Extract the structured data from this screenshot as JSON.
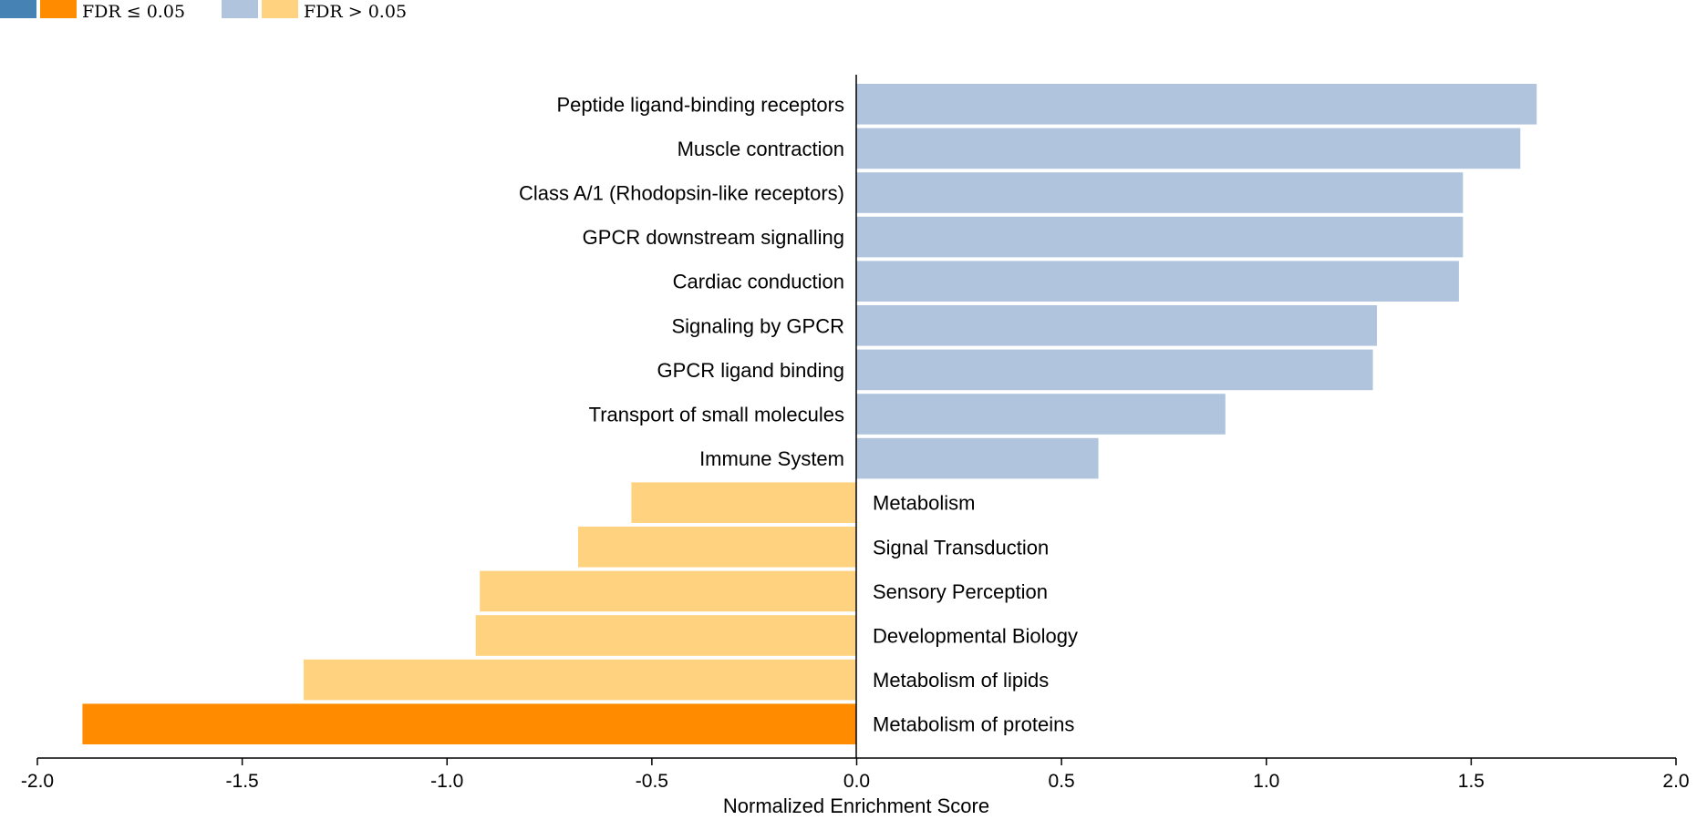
{
  "legend": {
    "items": [
      {
        "label": "FDR ≤ 0.05",
        "colors": [
          "#4682b4",
          "#ff8c00"
        ]
      },
      {
        "label": "FDR > 0.05",
        "colors": [
          "#b0c4de",
          "#ffd27f"
        ]
      }
    ]
  },
  "chart_data": {
    "type": "bar",
    "orientation": "horizontal",
    "title": "",
    "xlabel": "Normalized Enrichment Score",
    "ylabel": "",
    "xlim": [
      -2.0,
      2.0
    ],
    "xticks": [
      "-2.0",
      "-1.5",
      "-1.0",
      "-0.5",
      "0.0",
      "0.5",
      "1.0",
      "1.5",
      "2.0"
    ],
    "xtick_values": [
      -2.0,
      -1.5,
      -1.0,
      -0.5,
      0.0,
      0.5,
      1.0,
      1.5,
      2.0
    ],
    "grid": false,
    "legend_position": "top-left",
    "colors": {
      "positive_significant": "#4682b4",
      "negative_significant": "#ff8c00",
      "positive_not_significant": "#b0c4de",
      "negative_not_significant": "#ffd27f"
    },
    "bars": [
      {
        "category": "Peptide ligand-binding receptors",
        "value": 1.66,
        "significant": false
      },
      {
        "category": "Muscle contraction",
        "value": 1.62,
        "significant": false
      },
      {
        "category": "Class A/1 (Rhodopsin-like receptors)",
        "value": 1.48,
        "significant": false
      },
      {
        "category": "GPCR downstream signalling",
        "value": 1.48,
        "significant": false
      },
      {
        "category": "Cardiac conduction",
        "value": 1.47,
        "significant": false
      },
      {
        "category": "Signaling by GPCR",
        "value": 1.27,
        "significant": false
      },
      {
        "category": "GPCR ligand binding",
        "value": 1.26,
        "significant": false
      },
      {
        "category": "Transport of small molecules",
        "value": 0.9,
        "significant": false
      },
      {
        "category": "Immune System",
        "value": 0.59,
        "significant": false
      },
      {
        "category": "Metabolism",
        "value": -0.55,
        "significant": false
      },
      {
        "category": "Signal Transduction",
        "value": -0.68,
        "significant": false
      },
      {
        "category": "Sensory Perception",
        "value": -0.92,
        "significant": false
      },
      {
        "category": "Developmental Biology",
        "value": -0.93,
        "significant": false
      },
      {
        "category": "Metabolism of lipids",
        "value": -1.35,
        "significant": false
      },
      {
        "category": "Metabolism of proteins",
        "value": -1.89,
        "significant": true
      }
    ]
  }
}
